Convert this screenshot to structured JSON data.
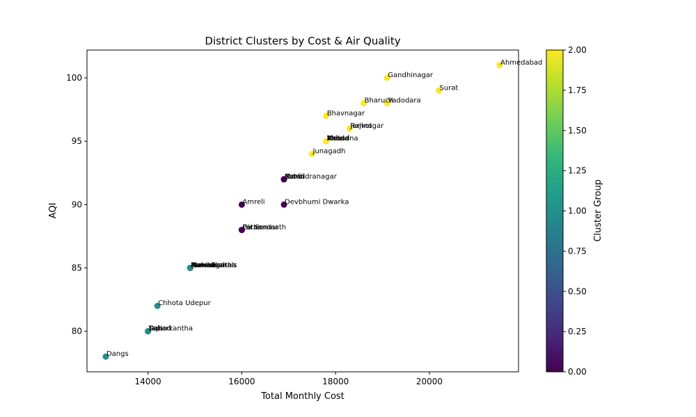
{
  "chart_data": {
    "type": "scatter",
    "title": "District Clusters by Cost & Air Quality",
    "xlabel": "Total Monthly Cost",
    "ylabel": "AQI",
    "xlim": [
      12700,
      21900
    ],
    "ylim": [
      76.8,
      102.2
    ],
    "xticks": [
      14000,
      16000,
      18000,
      20000
    ],
    "yticks": [
      80,
      85,
      90,
      95,
      100
    ],
    "grid": false,
    "colorbar": {
      "label": "Cluster Group",
      "range": [
        0.0,
        2.0
      ],
      "ticks": [
        "0.00",
        "0.25",
        "0.50",
        "0.75",
        "1.00",
        "1.25",
        "1.50",
        "1.75",
        "2.00"
      ],
      "colormap": "viridis",
      "stops": [
        "#440154",
        "#482878",
        "#3e4989",
        "#31688e",
        "#26828e",
        "#1f9e89",
        "#35b779",
        "#6ece58",
        "#b5de2b",
        "#fde725"
      ]
    },
    "points": [
      {
        "name": "Ahmedabad",
        "x": 21500,
        "y": 101,
        "cluster": 2
      },
      {
        "name": "Gandhinagar",
        "x": 19100,
        "y": 100,
        "cluster": 2
      },
      {
        "name": "Surat",
        "x": 20200,
        "y": 99,
        "cluster": 2
      },
      {
        "name": "Bharuch",
        "x": 18600,
        "y": 98,
        "cluster": 2
      },
      {
        "name": "Vadodara",
        "x": 19100,
        "y": 98,
        "cluster": 2
      },
      {
        "name": "Bhavnagar",
        "x": 17800,
        "y": 97,
        "cluster": 2
      },
      {
        "name": "Jamnagar",
        "x": 18300,
        "y": 96,
        "cluster": 2
      },
      {
        "name": "Rajkot",
        "x": 18300,
        "y": 96,
        "cluster": 2
      },
      {
        "name": "Anand",
        "x": 17800,
        "y": 95,
        "cluster": 2
      },
      {
        "name": "Kheda",
        "x": 17800,
        "y": 95,
        "cluster": 2
      },
      {
        "name": "Mehsana",
        "x": 17800,
        "y": 95,
        "cluster": 2
      },
      {
        "name": "Valsad",
        "x": 17800,
        "y": 95,
        "cluster": 2
      },
      {
        "name": "Junagadh",
        "x": 17500,
        "y": 94,
        "cluster": 2
      },
      {
        "name": "Surendranagar",
        "x": 16900,
        "y": 92,
        "cluster": 0
      },
      {
        "name": "Morbi",
        "x": 16900,
        "y": 92,
        "cluster": 0
      },
      {
        "name": "Botad",
        "x": 16900,
        "y": 92,
        "cluster": 0
      },
      {
        "name": "Kutch",
        "x": 16900,
        "y": 92,
        "cluster": 0
      },
      {
        "name": "Amreli",
        "x": 16000,
        "y": 90,
        "cluster": 0
      },
      {
        "name": "Devbhumi Dwarka",
        "x": 16900,
        "y": 90,
        "cluster": 0
      },
      {
        "name": "Gir Somnath",
        "x": 16000,
        "y": 88,
        "cluster": 0
      },
      {
        "name": "Patan",
        "x": 16000,
        "y": 88,
        "cluster": 0
      },
      {
        "name": "Porbandar",
        "x": 16000,
        "y": 88,
        "cluster": 0
      },
      {
        "name": "Banaskantha",
        "x": 14900,
        "y": 85,
        "cluster": 1
      },
      {
        "name": "Aravalli",
        "x": 14900,
        "y": 85,
        "cluster": 1
      },
      {
        "name": "Mahisagar",
        "x": 14900,
        "y": 85,
        "cluster": 1
      },
      {
        "name": "Navsari",
        "x": 14900,
        "y": 85,
        "cluster": 1
      },
      {
        "name": "Panchmahals",
        "x": 14900,
        "y": 85,
        "cluster": 1
      },
      {
        "name": "Chhota Udepur",
        "x": 14200,
        "y": 82,
        "cluster": 1
      },
      {
        "name": "Sabarkantha",
        "x": 14000,
        "y": 80,
        "cluster": 1
      },
      {
        "name": "Dahod",
        "x": 14000,
        "y": 80,
        "cluster": 1
      },
      {
        "name": "Tapi",
        "x": 14000,
        "y": 80,
        "cluster": 1
      },
      {
        "name": "Dangs",
        "x": 13100,
        "y": 78,
        "cluster": 1
      }
    ]
  }
}
